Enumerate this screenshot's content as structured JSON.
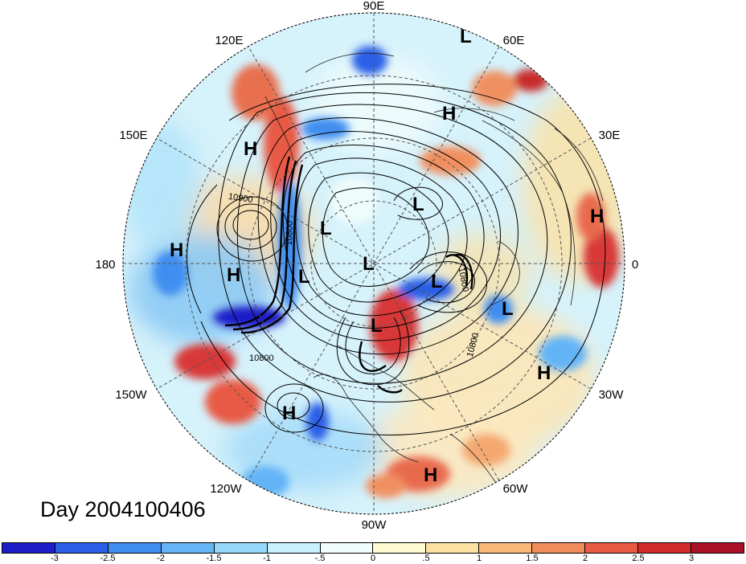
{
  "title": "Day 2004100406",
  "longitude_labels": {
    "top": "90E",
    "top_right": "60E",
    "upper_right": "30E",
    "right": "0",
    "lower_right": "30W",
    "bottom_right": "60W",
    "bottom": "90W",
    "bottom_left": "120W",
    "lower_left": "150W",
    "left": "180",
    "upper_left": "150E",
    "top_left": "120E"
  },
  "pressure_centers": [
    {
      "label": "L",
      "where": "near 75E, low latitude"
    },
    {
      "label": "H",
      "where": "Central Asia"
    },
    {
      "label": "H",
      "where": "Siberia / 140E"
    },
    {
      "label": "L",
      "where": "Arctic Russia"
    },
    {
      "label": "H",
      "where": "North Africa"
    },
    {
      "label": "H",
      "where": "Dateline, subtropics"
    },
    {
      "label": "H",
      "where": "Dateline, mid-latitudes"
    },
    {
      "label": "L",
      "where": "East Siberian Sea"
    },
    {
      "label": "L",
      "where": "North Pole"
    },
    {
      "label": "L",
      "where": "Bering Strait"
    },
    {
      "label": "L",
      "where": "Norwegian Sea"
    },
    {
      "label": "L",
      "where": "North Atlantic"
    },
    {
      "label": "L",
      "where": "Hudson Bay"
    },
    {
      "label": "H",
      "where": "Subtropical Atlantic"
    },
    {
      "label": "H",
      "where": "Eastern Pacific"
    },
    {
      "label": "H",
      "where": "Caribbean / South America"
    }
  ],
  "contour_labels": [
    "10900",
    "10800",
    "10800",
    "10800",
    "10800"
  ],
  "colorbar": {
    "colors": [
      "#1e1ec8",
      "#2c5ee6",
      "#3f8ef0",
      "#64b4f6",
      "#96d8fa",
      "#c8f0fc",
      "#eefcfc",
      "#fefad2",
      "#fce0a2",
      "#f8b878",
      "#f08c5a",
      "#e85a44",
      "#d02c2c",
      "#aa1026"
    ],
    "tick_labels": [
      "-3",
      "-2.5",
      "-2",
      "-1.5",
      "-1",
      "-.5",
      "0",
      ".5",
      "1",
      "1.5",
      "2",
      "2.5",
      "3"
    ]
  }
}
